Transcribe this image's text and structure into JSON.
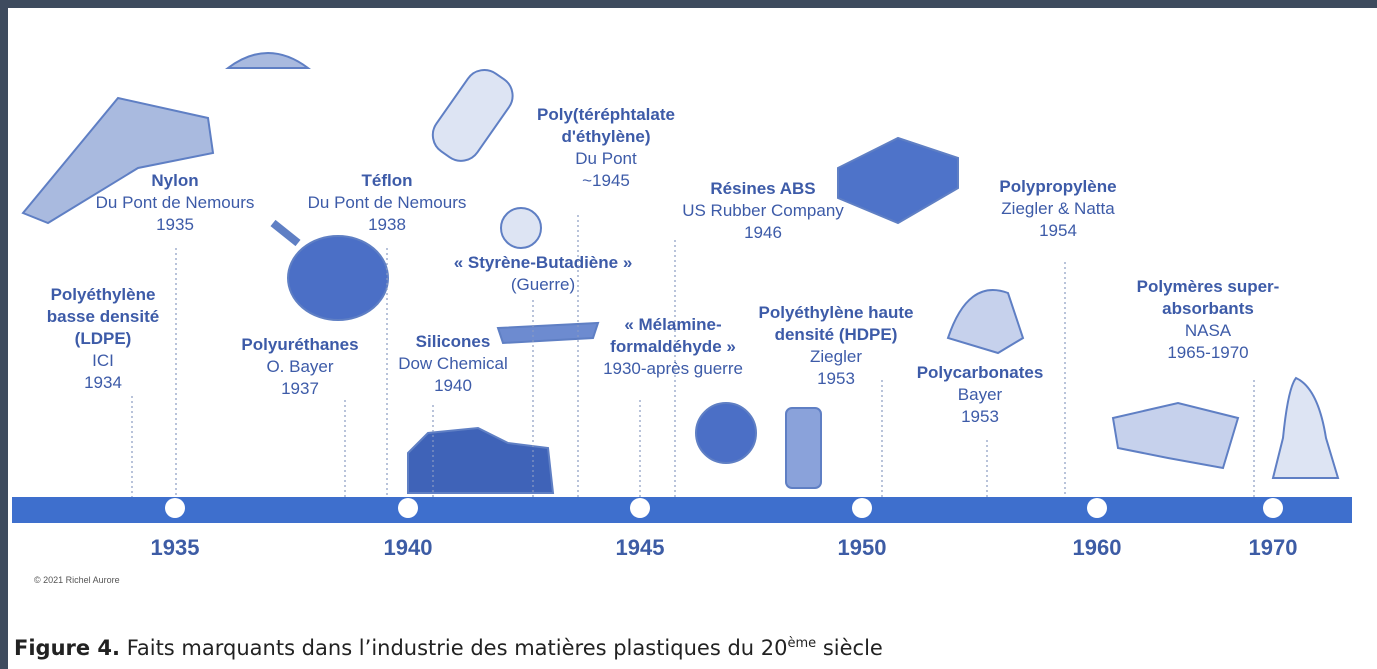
{
  "events": [
    {
      "title": [
        "Polyéthylène",
        "basse densité",
        "(LDPE)"
      ],
      "details": [
        "ICI",
        "1934"
      ]
    },
    {
      "title": [
        "Nylon"
      ],
      "details": [
        "Du Pont de Nemours",
        "1935"
      ]
    },
    {
      "title": [
        "Téflon"
      ],
      "details": [
        "Du Pont de  Nemours",
        "1938"
      ]
    },
    {
      "title": [
        "Polyuréthanes"
      ],
      "details": [
        "O. Bayer",
        "1937"
      ]
    },
    {
      "title": [
        "Silicones"
      ],
      "details": [
        "Dow Chemical",
        "1940"
      ]
    },
    {
      "title": [
        "« Styrène-Butadiène »"
      ],
      "details": [
        "(Guerre)"
      ]
    },
    {
      "title": [
        "Poly(téréphtalate",
        "d'éthylène)"
      ],
      "details": [
        "Du Pont",
        "~1945"
      ]
    },
    {
      "title": [
        "« Mélamine-",
        "formaldéhyde »"
      ],
      "details": [
        "1930-après guerre"
      ]
    },
    {
      "title": [
        "Résines ABS"
      ],
      "details": [
        "US Rubber Company",
        "1946"
      ]
    },
    {
      "title": [
        "Polyéthylène haute",
        "densité (HDPE)"
      ],
      "details": [
        "Ziegler",
        "1953"
      ]
    },
    {
      "title": [
        "Polycarbonates"
      ],
      "details": [
        "Bayer",
        "1953"
      ]
    },
    {
      "title": [
        "Polypropylène"
      ],
      "details": [
        "Ziegler & Natta",
        "1954"
      ]
    },
    {
      "title": [
        "Polymères super-",
        "absorbants"
      ],
      "details": [
        "NASA",
        "1965-1970"
      ]
    }
  ],
  "years": [
    "1935",
    "1940",
    "1945",
    "1950",
    "1960",
    "1970"
  ],
  "copyright": "© 2021 Richel Aurore",
  "caption": {
    "label": "Figure 4.",
    "text": "Faits marquants dans l’industrie des matières plastiques du 20",
    "sup": "ème",
    "tail": " siècle"
  }
}
